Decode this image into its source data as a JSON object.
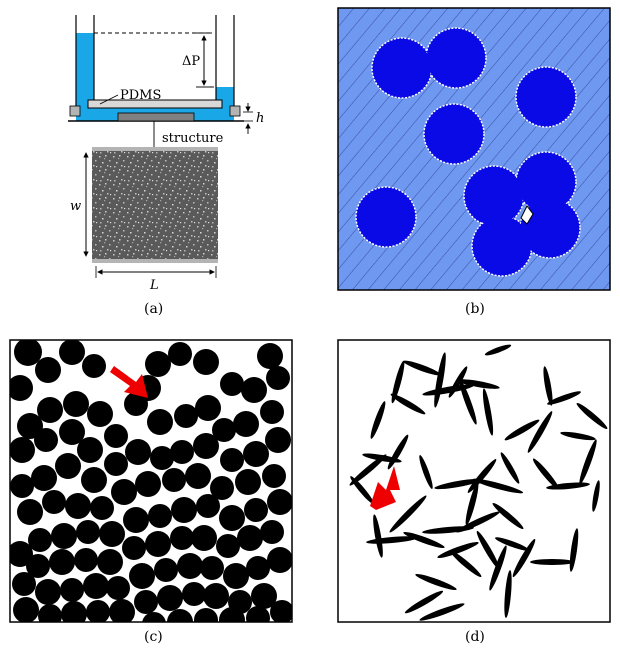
{
  "panel_a": {
    "caption": "(a)",
    "label_delta_p": "ΔP",
    "label_pdms": "PDMS",
    "label_h": "h",
    "label_structure": "structure",
    "label_w": "w",
    "label_L": "L",
    "colors": {
      "liquid": "#1aa7e8",
      "grey": "#b4b4b4",
      "dark_grey": "#808080",
      "sample": "#5a5a5a"
    }
  },
  "panel_b": {
    "caption": "(b)",
    "colors": {
      "background": "#6f98f0",
      "disk": "#0a0ae6",
      "hatch": "#2a3a90"
    }
  },
  "panel_c": {
    "caption": "(c)",
    "colors": {
      "disk": "#000000",
      "arrow": "#ee0000"
    }
  },
  "panel_d": {
    "caption": "(d)",
    "colors": {
      "needle": "#000000",
      "arrow": "#ee0000"
    }
  }
}
